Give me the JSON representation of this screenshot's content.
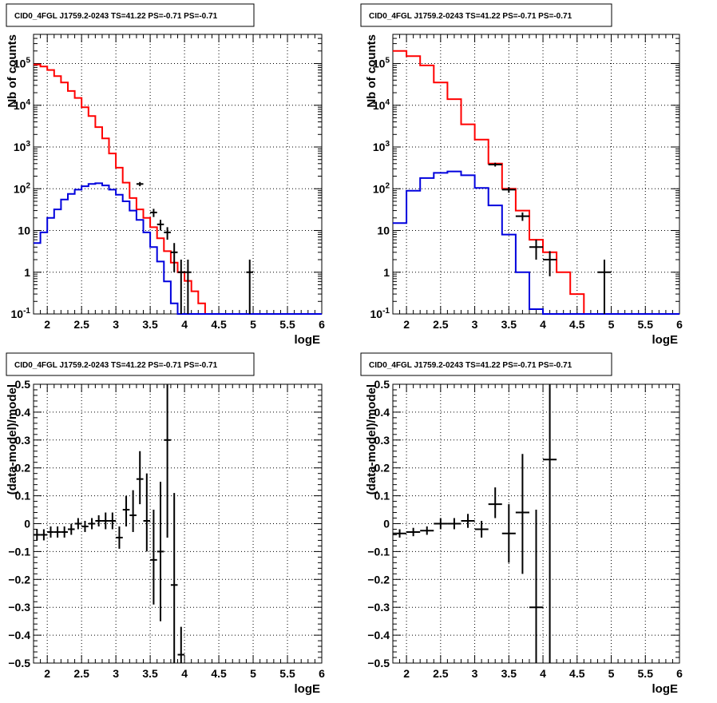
{
  "colors": {
    "model": "#ff0000",
    "source": "#0000dd",
    "data": "#000000",
    "grid": "#000000"
  },
  "chart_data": [
    {
      "type": "line",
      "title": "CID0_4FGL J1759.2-0243 TS=41.22 PS=-0.71 PS=-0.71",
      "xlabel": "logE",
      "ylabel": "Nb of counts",
      "xscale": "linear",
      "yscale": "log",
      "xlim": [
        1.8,
        6.0
      ],
      "ylim": [
        0.1,
        500000
      ],
      "grid": true,
      "xticks": [
        "2",
        "2.5",
        "3",
        "3.5",
        "4",
        "4.5",
        "5",
        "5.5",
        "6"
      ],
      "yticks": [
        "10^-1",
        "1",
        "10",
        "10^2",
        "10^3",
        "10^4",
        "10^5"
      ],
      "series": [
        {
          "style": "step",
          "color_key": "model",
          "edges": [
            1.8,
            1.9,
            2.0,
            2.1,
            2.2,
            2.3,
            2.4,
            2.5,
            2.6,
            2.7,
            2.8,
            2.9,
            3.0,
            3.1,
            3.2,
            3.3,
            3.4,
            3.5,
            3.6,
            3.7,
            3.8,
            3.9,
            4.0,
            4.1,
            4.2,
            4.3,
            4.4,
            4.5,
            4.6,
            4.7,
            4.8,
            4.9,
            5.0,
            5.1,
            5.2,
            5.3,
            5.4,
            5.5,
            5.6,
            5.7,
            5.8,
            5.9,
            6.0
          ],
          "values": [
            95000,
            85000,
            70000,
            50000,
            35000,
            22000,
            15000,
            9000,
            5500,
            3000,
            1600,
            700,
            320,
            140,
            60,
            32,
            20,
            12,
            6.5,
            3.2,
            1.7,
            1.0,
            0.62,
            0.35,
            0.18,
            0.1,
            0.1,
            0.1,
            0.1,
            0.1,
            0.1,
            0.1,
            0.1,
            0.1,
            0.1,
            0.1,
            0.1,
            0.1,
            0.1,
            0.1,
            0.1,
            0.1
          ]
        },
        {
          "style": "step",
          "color_key": "source",
          "edges": [
            1.8,
            1.9,
            2.0,
            2.1,
            2.2,
            2.3,
            2.4,
            2.5,
            2.6,
            2.7,
            2.8,
            2.9,
            3.0,
            3.1,
            3.2,
            3.3,
            3.4,
            3.5,
            3.6,
            3.7,
            3.8,
            3.9,
            4.0,
            4.1,
            4.2,
            4.3,
            4.4,
            4.5,
            4.6,
            4.7,
            4.8,
            4.9,
            5.0,
            5.1,
            5.2,
            5.3,
            5.4,
            5.5,
            5.6,
            5.7,
            5.8,
            5.9,
            6.0
          ],
          "values": [
            5,
            9,
            20,
            32,
            55,
            75,
            95,
            115,
            130,
            135,
            120,
            95,
            72,
            50,
            30,
            18,
            9,
            4,
            1.8,
            0.6,
            0.18,
            0.1,
            0.1,
            0.1,
            0.1,
            0.1,
            0.1,
            0.1,
            0.1,
            0.1,
            0.1,
            0.1,
            0.1,
            0.1,
            0.1,
            0.1,
            0.1,
            0.1,
            0.1,
            0.1,
            0.1,
            0.1
          ]
        },
        {
          "style": "errorbars",
          "color_key": "data",
          "points": [
            {
              "x": 3.35,
              "y": 130,
              "xerr": 0.05,
              "ylo": 115,
              "yhi": 145
            },
            {
              "x": 3.55,
              "y": 27,
              "xerr": 0.05,
              "ylo": 21,
              "yhi": 33
            },
            {
              "x": 3.65,
              "y": 14,
              "xerr": 0.05,
              "ylo": 10,
              "yhi": 18
            },
            {
              "x": 3.75,
              "y": 9,
              "xerr": 0.05,
              "ylo": 6,
              "yhi": 12
            },
            {
              "x": 3.85,
              "y": 3,
              "xerr": 0.05,
              "ylo": 1,
              "yhi": 5
            },
            {
              "x": 3.95,
              "y": 1,
              "xerr": 0.05,
              "ylo": 0.1,
              "yhi": 2
            },
            {
              "x": 4.05,
              "y": 1,
              "xerr": 0.05,
              "ylo": 0.1,
              "yhi": 2
            },
            {
              "x": 4.95,
              "y": 1,
              "xerr": 0.05,
              "ylo": 0.1,
              "yhi": 2
            }
          ]
        }
      ]
    },
    {
      "type": "line",
      "title": "CID0_4FGL J1759.2-0243 TS=41.22 PS=-0.71 PS=-0.71",
      "xlabel": "logE",
      "ylabel": "Nb of counts",
      "xscale": "linear",
      "yscale": "log",
      "xlim": [
        1.8,
        6.0
      ],
      "ylim": [
        0.1,
        500000
      ],
      "grid": true,
      "xticks": [
        "2",
        "2.5",
        "3",
        "3.5",
        "4",
        "4.5",
        "5",
        "5.5",
        "6"
      ],
      "yticks": [
        "10^-1",
        "1",
        "10",
        "10^2",
        "10^3",
        "10^4",
        "10^5"
      ],
      "series": [
        {
          "style": "step",
          "color_key": "model",
          "edges": [
            1.8,
            2.0,
            2.2,
            2.4,
            2.6,
            2.8,
            3.0,
            3.2,
            3.4,
            3.6,
            3.8,
            4.0,
            4.2,
            4.4,
            4.6,
            4.8,
            5.0,
            5.2,
            5.4,
            5.6,
            5.8,
            6.0
          ],
          "values": [
            200000,
            150000,
            90000,
            35000,
            14000,
            3500,
            1500,
            400,
            100,
            30,
            6,
            3,
            1,
            0.3,
            0.1,
            0.1,
            0.1,
            0.1,
            0.1,
            0.1,
            0.1
          ]
        },
        {
          "style": "step",
          "color_key": "source",
          "edges": [
            1.8,
            2.0,
            2.2,
            2.4,
            2.6,
            2.8,
            3.0,
            3.2,
            3.4,
            3.6,
            3.8,
            4.0,
            4.2,
            4.4,
            4.6,
            4.8,
            5.0,
            5.2,
            5.4,
            5.6,
            5.8,
            6.0
          ],
          "values": [
            15,
            90,
            180,
            240,
            260,
            210,
            105,
            40,
            8,
            1,
            0.13,
            0.1,
            0.1,
            0.1,
            0.1,
            0.1,
            0.1,
            0.1,
            0.1,
            0.1,
            0.1
          ]
        },
        {
          "style": "errorbars",
          "color_key": "data",
          "points": [
            {
              "x": 3.3,
              "y": 380,
              "xerr": 0.1,
              "ylo": 340,
              "yhi": 420
            },
            {
              "x": 3.5,
              "y": 95,
              "xerr": 0.1,
              "ylo": 80,
              "yhi": 110
            },
            {
              "x": 3.7,
              "y": 22,
              "xerr": 0.1,
              "ylo": 17,
              "yhi": 27
            },
            {
              "x": 3.9,
              "y": 4,
              "xerr": 0.1,
              "ylo": 2,
              "yhi": 6
            },
            {
              "x": 4.1,
              "y": 2,
              "xerr": 0.1,
              "ylo": 0.8,
              "yhi": 3.2
            },
            {
              "x": 4.9,
              "y": 1,
              "xerr": 0.1,
              "ylo": 0.1,
              "yhi": 2
            }
          ]
        }
      ]
    },
    {
      "type": "scatter",
      "title": "CID0_4FGL J1759.2-0243 TS=41.22 PS=-0.71 PS=-0.71",
      "xlabel": "logE",
      "ylabel": "(data-model)/model",
      "xscale": "linear",
      "yscale": "linear",
      "xlim": [
        1.8,
        6.0
      ],
      "ylim": [
        -0.5,
        0.5
      ],
      "grid": true,
      "xticks": [
        "2",
        "2.5",
        "3",
        "3.5",
        "4",
        "4.5",
        "5",
        "5.5",
        "6"
      ],
      "yticks": [
        "-0.5",
        "-0.4",
        "-0.3",
        "-0.2",
        "-0.1",
        "0",
        "0.1",
        "0.2",
        "0.3",
        "0.4",
        "0.5"
      ],
      "series": [
        {
          "style": "errorbars",
          "color_key": "data",
          "points": [
            {
              "x": 1.85,
              "y": -0.04,
              "xerr": 0.05,
              "ylo": -0.06,
              "yhi": -0.02
            },
            {
              "x": 1.95,
              "y": -0.04,
              "xerr": 0.05,
              "ylo": -0.06,
              "yhi": -0.02
            },
            {
              "x": 2.05,
              "y": -0.03,
              "xerr": 0.05,
              "ylo": -0.05,
              "yhi": -0.01
            },
            {
              "x": 2.15,
              "y": -0.03,
              "xerr": 0.05,
              "ylo": -0.05,
              "yhi": -0.01
            },
            {
              "x": 2.25,
              "y": -0.03,
              "xerr": 0.05,
              "ylo": -0.05,
              "yhi": -0.01
            },
            {
              "x": 2.35,
              "y": -0.02,
              "xerr": 0.05,
              "ylo": -0.04,
              "yhi": 0.0
            },
            {
              "x": 2.45,
              "y": 0.0,
              "xerr": 0.05,
              "ylo": -0.02,
              "yhi": 0.02
            },
            {
              "x": 2.55,
              "y": -0.01,
              "xerr": 0.05,
              "ylo": -0.03,
              "yhi": 0.01
            },
            {
              "x": 2.65,
              "y": 0.0,
              "xerr": 0.05,
              "ylo": -0.02,
              "yhi": 0.02
            },
            {
              "x": 2.75,
              "y": 0.01,
              "xerr": 0.05,
              "ylo": -0.01,
              "yhi": 0.03
            },
            {
              "x": 2.85,
              "y": 0.01,
              "xerr": 0.05,
              "ylo": -0.02,
              "yhi": 0.04
            },
            {
              "x": 2.95,
              "y": 0.01,
              "xerr": 0.05,
              "ylo": -0.02,
              "yhi": 0.04
            },
            {
              "x": 3.05,
              "y": -0.05,
              "xerr": 0.05,
              "ylo": -0.09,
              "yhi": -0.01
            },
            {
              "x": 3.15,
              "y": 0.05,
              "xerr": 0.05,
              "ylo": -0.01,
              "yhi": 0.1
            },
            {
              "x": 3.25,
              "y": 0.03,
              "xerr": 0.05,
              "ylo": -0.03,
              "yhi": 0.12
            },
            {
              "x": 3.35,
              "y": 0.16,
              "xerr": 0.05,
              "ylo": 0.07,
              "yhi": 0.26
            },
            {
              "x": 3.45,
              "y": 0.01,
              "xerr": 0.05,
              "ylo": -0.1,
              "yhi": 0.18
            },
            {
              "x": 3.55,
              "y": -0.13,
              "xerr": 0.05,
              "ylo": -0.29,
              "yhi": 0.05
            },
            {
              "x": 3.65,
              "y": -0.1,
              "xerr": 0.05,
              "ylo": -0.35,
              "yhi": 0.15
            },
            {
              "x": 3.75,
              "y": 0.3,
              "xerr": 0.05,
              "ylo": -0.05,
              "yhi": 0.5
            },
            {
              "x": 3.85,
              "y": -0.22,
              "xerr": 0.05,
              "ylo": -0.5,
              "yhi": 0.11
            },
            {
              "x": 3.95,
              "y": -0.47,
              "xerr": 0.05,
              "ylo": -0.5,
              "yhi": -0.37
            }
          ]
        }
      ]
    },
    {
      "type": "scatter",
      "title": "CID0_4FGL J1759.2-0243 TS=41.22 PS=-0.71 PS=-0.71",
      "xlabel": "logE",
      "ylabel": "(data-model)/model",
      "xscale": "linear",
      "yscale": "linear",
      "xlim": [
        1.8,
        6.0
      ],
      "ylim": [
        -0.5,
        0.5
      ],
      "grid": true,
      "xticks": [
        "2",
        "2.5",
        "3",
        "3.5",
        "4",
        "4.5",
        "5",
        "5.5",
        "6"
      ],
      "yticks": [
        "-0.5",
        "-0.4",
        "-0.3",
        "-0.2",
        "-0.1",
        "0",
        "0.1",
        "0.2",
        "0.3",
        "0.4",
        "0.5"
      ],
      "series": [
        {
          "style": "errorbars",
          "color_key": "data",
          "points": [
            {
              "x": 1.9,
              "y": -0.035,
              "xerr": 0.1,
              "ylo": -0.05,
              "yhi": -0.02
            },
            {
              "x": 2.1,
              "y": -0.03,
              "xerr": 0.1,
              "ylo": -0.045,
              "yhi": -0.015
            },
            {
              "x": 2.3,
              "y": -0.025,
              "xerr": 0.1,
              "ylo": -0.04,
              "yhi": -0.01
            },
            {
              "x": 2.5,
              "y": 0.0,
              "xerr": 0.1,
              "ylo": -0.02,
              "yhi": 0.02
            },
            {
              "x": 2.7,
              "y": 0.0,
              "xerr": 0.1,
              "ylo": -0.02,
              "yhi": 0.02
            },
            {
              "x": 2.9,
              "y": 0.01,
              "xerr": 0.1,
              "ylo": -0.015,
              "yhi": 0.035
            },
            {
              "x": 3.1,
              "y": -0.02,
              "xerr": 0.1,
              "ylo": -0.05,
              "yhi": 0.01
            },
            {
              "x": 3.3,
              "y": 0.07,
              "xerr": 0.1,
              "ylo": 0.02,
              "yhi": 0.13
            },
            {
              "x": 3.5,
              "y": -0.035,
              "xerr": 0.1,
              "ylo": -0.14,
              "yhi": 0.07
            },
            {
              "x": 3.7,
              "y": 0.04,
              "xerr": 0.1,
              "ylo": -0.18,
              "yhi": 0.25
            },
            {
              "x": 3.9,
              "y": -0.3,
              "xerr": 0.1,
              "ylo": -0.5,
              "yhi": 0.05
            },
            {
              "x": 4.1,
              "y": 0.23,
              "xerr": 0.1,
              "ylo": -0.5,
              "yhi": 0.5
            }
          ]
        }
      ]
    }
  ]
}
